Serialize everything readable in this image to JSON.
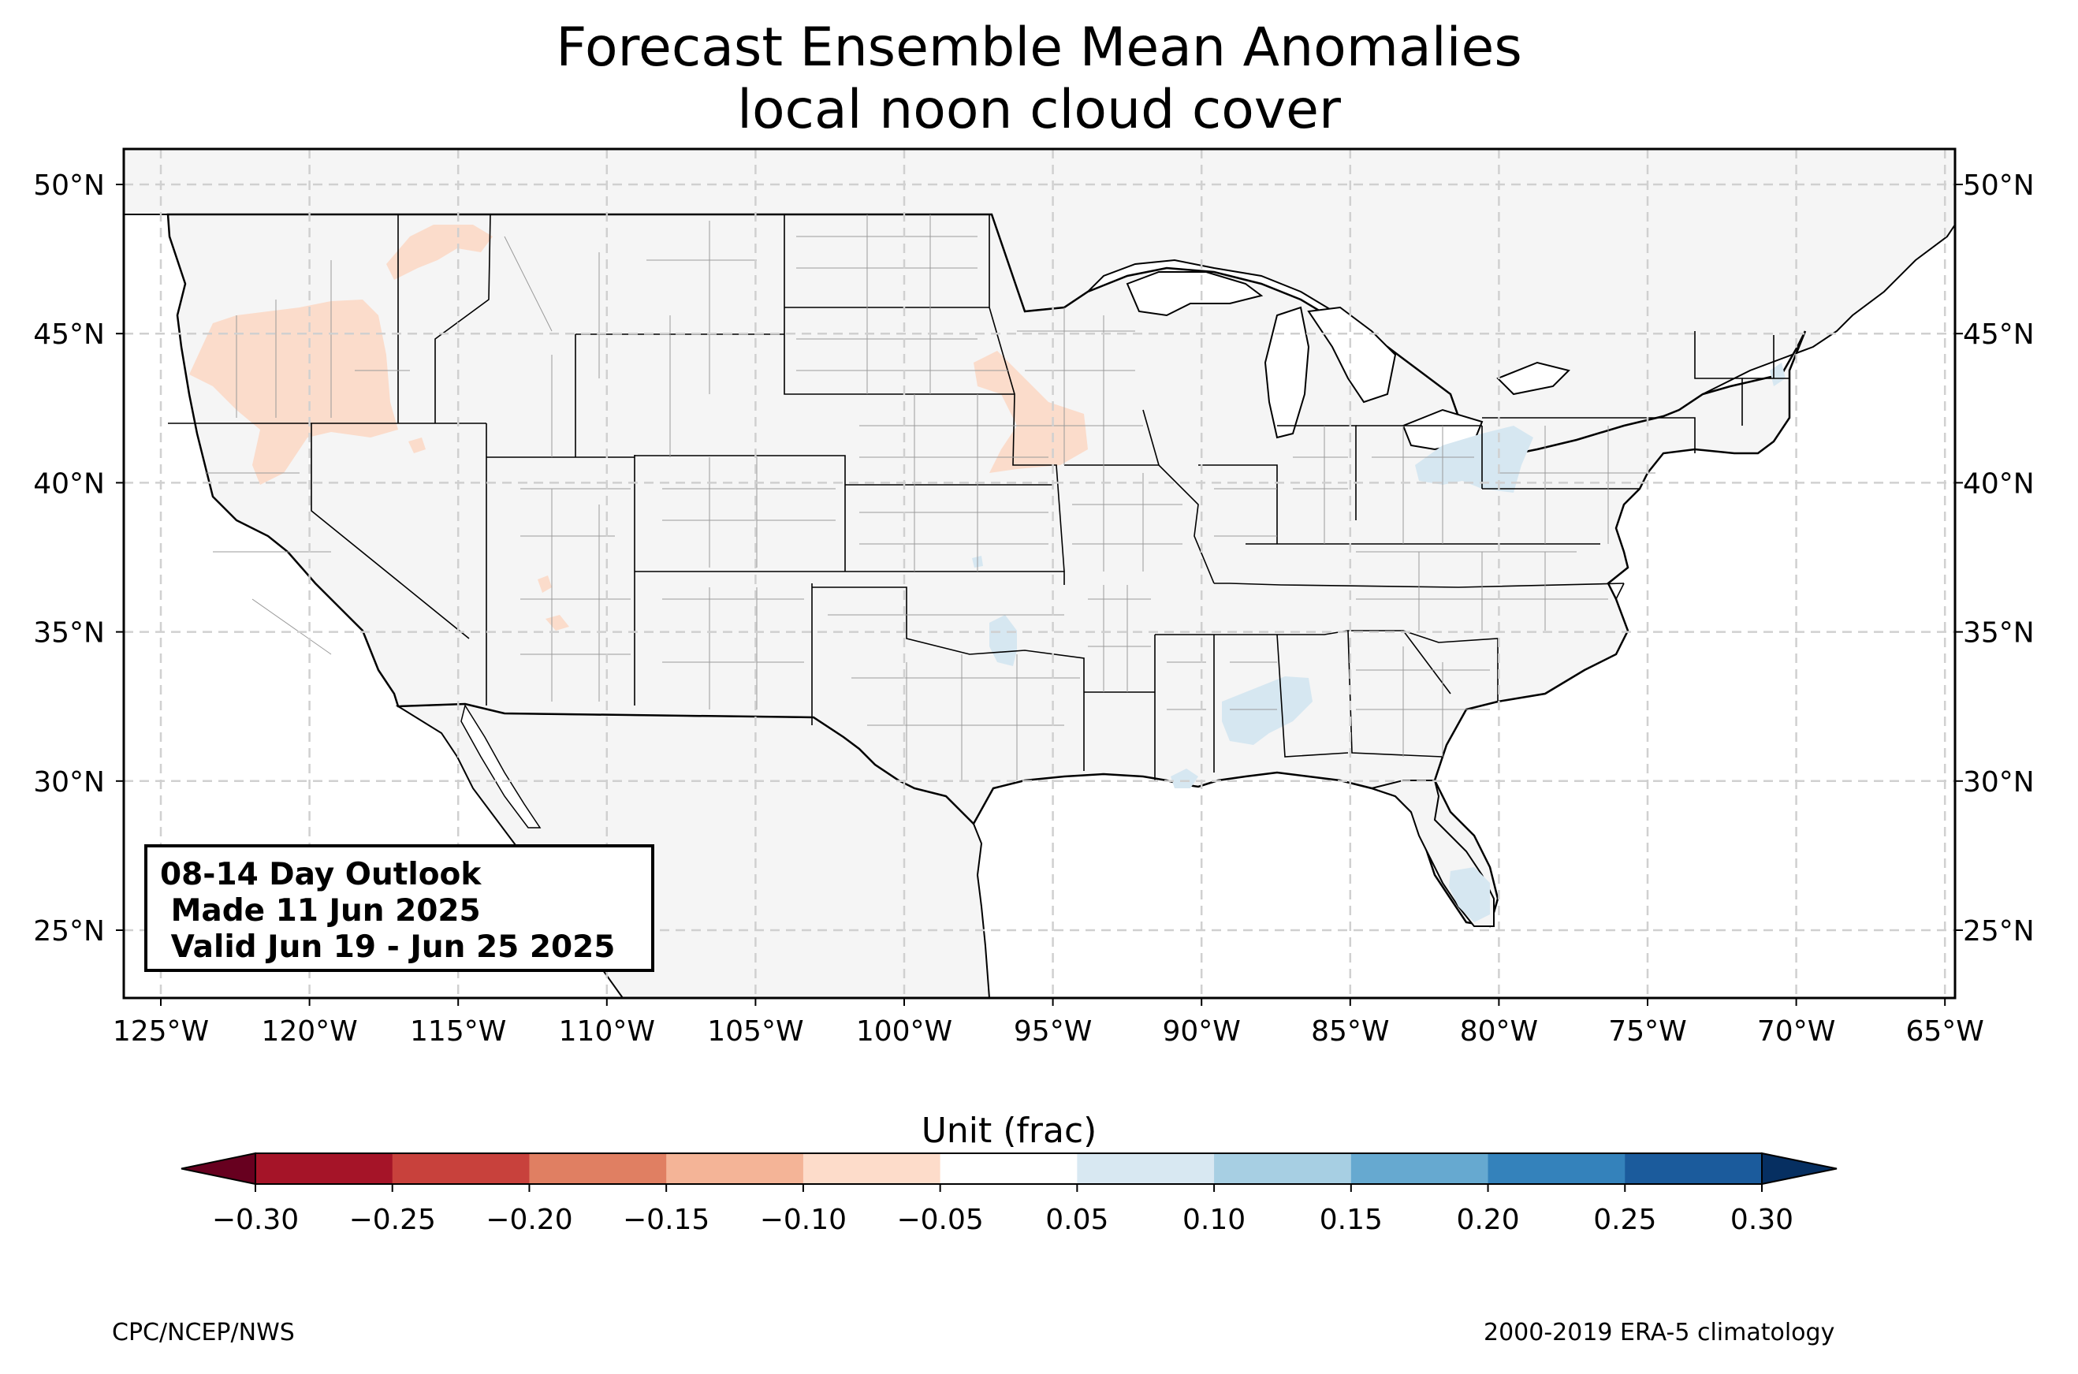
{
  "title": {
    "line1": "Forecast Ensemble Mean Anomalies",
    "line2": "local noon cloud cover"
  },
  "map": {
    "lat_ticks": [
      "50°N",
      "45°N",
      "40°N",
      "35°N",
      "30°N",
      "25°N"
    ],
    "lon_ticks": [
      "125°W",
      "120°W",
      "115°W",
      "110°W",
      "105°W",
      "100°W",
      "95°W",
      "90°W",
      "85°W",
      "80°W",
      "75°W",
      "70°W",
      "65°W"
    ],
    "land_color": "#f5f5f5",
    "ocean_color": "#ffffff",
    "anomaly_regions": [
      {
        "area": "Oregon / northern California",
        "value_range": "-0.10 to -0.05",
        "color": "#fbdccb"
      },
      {
        "area": "Idaho / Montana border",
        "value_range": "-0.10 to -0.05",
        "color": "#fbdccb"
      },
      {
        "area": "eastern Nebraska / Iowa",
        "value_range": "-0.10 to -0.05",
        "color": "#fbdccb"
      },
      {
        "area": "central Arizona",
        "value_range": "-0.10 to -0.05",
        "color": "#fbdccb"
      },
      {
        "area": "Ohio / western Pennsylvania",
        "value_range": "0.05 to 0.10",
        "color": "#d6e7f1"
      },
      {
        "area": "Mississippi / Alabama",
        "value_range": "0.05 to 0.10",
        "color": "#d6e7f1"
      },
      {
        "area": "southern Louisiana",
        "value_range": "0.05 to 0.10",
        "color": "#d6e7f1"
      },
      {
        "area": "central Oklahoma",
        "value_range": "0.05 to 0.10",
        "color": "#d6e7f1"
      },
      {
        "area": "southern Florida",
        "value_range": "0.05 to 0.10",
        "color": "#d6e7f1"
      }
    ]
  },
  "outlook_box": {
    "line1": "08-14 Day Outlook",
    "line2": " Made 11 Jun 2025",
    "line3": " Valid Jun 19 - Jun 25 2025"
  },
  "colorbar": {
    "label": "Unit (frac)",
    "ticks": [
      "−0.30",
      "−0.25",
      "−0.20",
      "−0.15",
      "−0.10",
      "−0.05",
      "0.05",
      "0.10",
      "0.15",
      "0.20",
      "0.25",
      "0.30"
    ],
    "colors": [
      "#a51428",
      "#c8413c",
      "#e07f62",
      "#f4b497",
      "#fddcca",
      "#ffffff",
      "#d8e8f2",
      "#a7cfe3",
      "#66a9d0",
      "#3482bb",
      "#1b5b9c"
    ],
    "under_color": "#67001f",
    "over_color": "#062f61"
  },
  "footer": {
    "left": "CPC/NCEP/NWS",
    "right": "2000-2019 ERA-5 climatology"
  }
}
